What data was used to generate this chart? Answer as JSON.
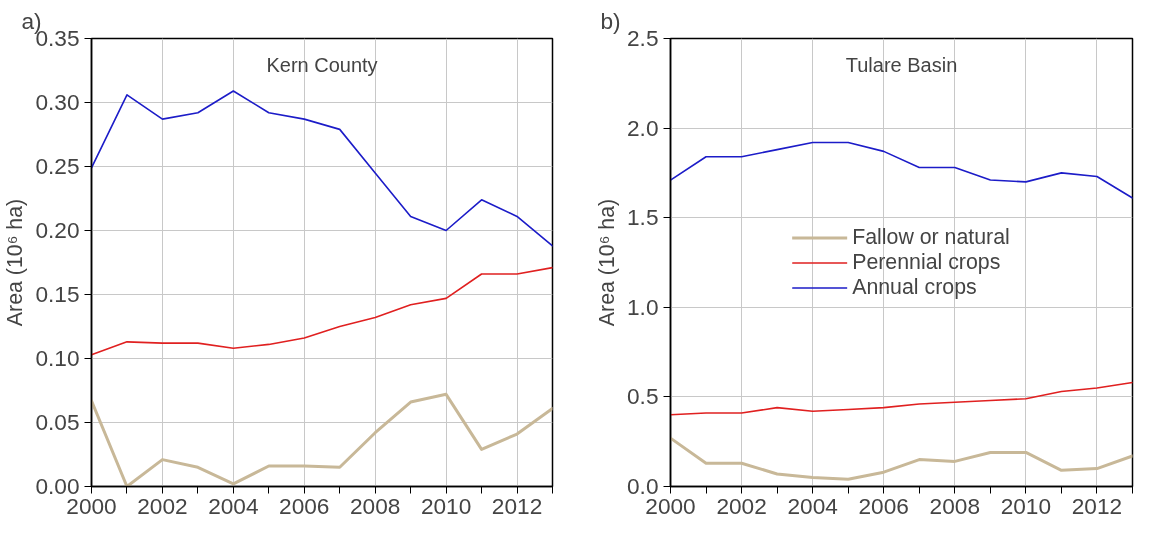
{
  "chart_data": [
    {
      "type": "line",
      "title": "Kern County",
      "annotations": [
        "a)"
      ],
      "ylabel": "Area (10⁶ ha)",
      "x": [
        2000,
        2001,
        2002,
        2003,
        2004,
        2005,
        2006,
        2007,
        2008,
        2009,
        2010,
        2011,
        2012,
        2013
      ],
      "series": [
        {
          "color": "#c8b898",
          "values": [
            0.067,
            0.0,
            0.021,
            0.015,
            0.002,
            0.016,
            0.016,
            0.015,
            0.042,
            0.066,
            0.072,
            0.029,
            0.041,
            0.061
          ]
        },
        {
          "color": "#e02020",
          "values": [
            0.103,
            0.113,
            0.112,
            0.112,
            0.108,
            0.111,
            0.116,
            0.125,
            0.132,
            0.142,
            0.147,
            0.166,
            0.166,
            0.171
          ]
        },
        {
          "color": "#1c1cc8",
          "values": [
            0.249,
            0.306,
            0.287,
            0.292,
            0.309,
            0.292,
            0.287,
            0.279,
            0.245,
            0.211,
            0.2,
            0.224,
            0.211,
            0.188
          ]
        }
      ],
      "xlim": [
        2000,
        2013
      ],
      "ylim": [
        0,
        0.35
      ],
      "xticks": [
        2000,
        {
          "value": 2001,
          "label": null
        },
        2002,
        {
          "value": 2003,
          "label": null
        },
        2004,
        {
          "value": 2005,
          "label": null
        },
        2006,
        {
          "value": 2007,
          "label": null
        },
        2008,
        {
          "value": 2009,
          "label": null
        },
        2010,
        {
          "value": 2011,
          "label": null
        },
        2012,
        {
          "value": 2013,
          "label": null
        }
      ],
      "yticks": [
        {
          "value": 0,
          "label": "0.00"
        },
        0.05,
        {
          "value": 0.1,
          "label": "0.10"
        },
        0.15,
        {
          "value": 0.2,
          "label": "0.20"
        },
        0.25,
        {
          "value": 0.3,
          "label": "0.30"
        },
        0.35
      ],
      "grid": true,
      "legend": false
    },
    {
      "type": "line",
      "title": "Tulare Basin",
      "annotations": [
        "b)"
      ],
      "ylabel": "Area (10⁶ ha)",
      "x": [
        2000,
        2001,
        2002,
        2003,
        2004,
        2005,
        2006,
        2007,
        2008,
        2009,
        2010,
        2011,
        2012,
        2013
      ],
      "series": [
        {
          "name": "Fallow or natural",
          "color": "#c8b898",
          "values": [
            0.27,
            0.13,
            0.13,
            0.07,
            0.05,
            0.04,
            0.08,
            0.15,
            0.14,
            0.19,
            0.19,
            0.09,
            0.1,
            0.17
          ]
        },
        {
          "name": "Perennial crops",
          "color": "#e02020",
          "values": [
            0.4,
            0.41,
            0.41,
            0.44,
            0.42,
            0.43,
            0.44,
            0.46,
            0.47,
            0.48,
            0.49,
            0.53,
            0.55,
            0.58
          ]
        },
        {
          "name": "Annual crops",
          "color": "#1c1cc8",
          "values": [
            1.71,
            1.84,
            1.84,
            1.88,
            1.92,
            1.92,
            1.87,
            1.78,
            1.78,
            1.71,
            1.7,
            1.75,
            1.73,
            1.61
          ]
        }
      ],
      "xlim": [
        2000,
        2013
      ],
      "ylim": [
        0,
        2.5
      ],
      "xticks": [
        2000,
        {
          "value": 2001,
          "label": null
        },
        2002,
        {
          "value": 2003,
          "label": null
        },
        2004,
        {
          "value": 2005,
          "label": null
        },
        2006,
        {
          "value": 2007,
          "label": null
        },
        2008,
        {
          "value": 2009,
          "label": null
        },
        2010,
        {
          "value": 2011,
          "label": null
        },
        2012,
        {
          "value": 2013,
          "label": null
        }
      ],
      "yticks": [
        {
          "value": 0,
          "label": "0.0"
        },
        0.5,
        {
          "value": 1,
          "label": "1.0"
        },
        1.5,
        {
          "value": 2,
          "label": "2.0"
        },
        2.5
      ],
      "grid": true,
      "legend": "center"
    }
  ]
}
